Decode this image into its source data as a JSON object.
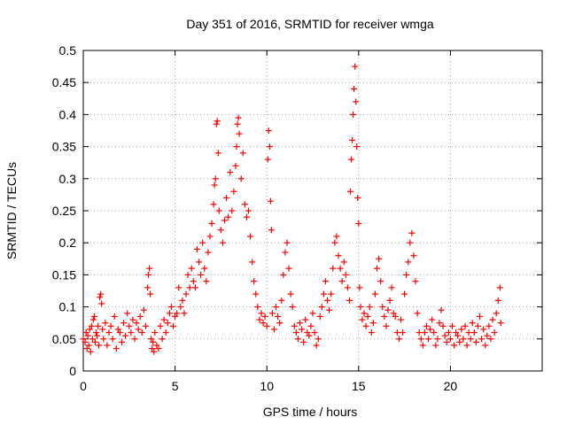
{
  "chart_data": {
    "type": "scatter",
    "title": "Day 351 of 2016, SRMTID for receiver wmga",
    "xlabel": "GPS time / hours",
    "ylabel": "SRMTID / TECUs",
    "xlim": [
      0,
      25
    ],
    "ylim": [
      0,
      0.5
    ],
    "x_ticks": [
      0,
      5,
      10,
      15,
      20
    ],
    "x_tick_labels": [
      "0",
      "5",
      "10",
      "15",
      "20"
    ],
    "y_ticks": [
      0,
      0.05,
      0.1,
      0.15,
      0.2,
      0.25,
      0.3,
      0.35,
      0.4,
      0.45,
      0.5
    ],
    "y_tick_labels": [
      "0",
      "0.05",
      "0.1",
      "0.15",
      "0.2",
      "0.25",
      "0.3",
      "0.35",
      "0.4",
      "0.45",
      "0.5"
    ],
    "grid": true,
    "marker": "+",
    "marker_color": "#ff0000",
    "series": [
      {
        "name": "SRMTID",
        "points": [
          [
            0.0,
            0.05
          ],
          [
            0.1,
            0.045
          ],
          [
            0.15,
            0.06
          ],
          [
            0.2,
            0.035
          ],
          [
            0.25,
            0.055
          ],
          [
            0.3,
            0.04
          ],
          [
            0.35,
            0.065
          ],
          [
            0.4,
            0.03
          ],
          [
            0.45,
            0.07
          ],
          [
            0.5,
            0.05
          ],
          [
            0.55,
            0.08
          ],
          [
            0.6,
            0.085
          ],
          [
            0.65,
            0.045
          ],
          [
            0.7,
            0.06
          ],
          [
            0.75,
            0.055
          ],
          [
            0.8,
            0.07
          ],
          [
            0.85,
            0.04
          ],
          [
            0.9,
            0.115
          ],
          [
            0.95,
            0.12
          ],
          [
            1.0,
            0.105
          ],
          [
            1.05,
            0.065
          ],
          [
            1.1,
            0.05
          ],
          [
            1.2,
            0.075
          ],
          [
            1.3,
            0.04
          ],
          [
            1.4,
            0.06
          ],
          [
            1.5,
            0.07
          ],
          [
            1.6,
            0.05
          ],
          [
            1.7,
            0.085
          ],
          [
            1.8,
            0.035
          ],
          [
            1.9,
            0.065
          ],
          [
            2.0,
            0.06
          ],
          [
            2.1,
            0.045
          ],
          [
            2.2,
            0.075
          ],
          [
            2.3,
            0.055
          ],
          [
            2.4,
            0.09
          ],
          [
            2.5,
            0.07
          ],
          [
            2.6,
            0.06
          ],
          [
            2.7,
            0.08
          ],
          [
            2.8,
            0.05
          ],
          [
            2.9,
            0.075
          ],
          [
            3.0,
            0.065
          ],
          [
            3.1,
            0.085
          ],
          [
            3.2,
            0.06
          ],
          [
            3.3,
            0.095
          ],
          [
            3.4,
            0.07
          ],
          [
            3.5,
            0.13
          ],
          [
            3.55,
            0.15
          ],
          [
            3.6,
            0.16
          ],
          [
            3.65,
            0.12
          ],
          [
            3.7,
            0.05
          ],
          [
            3.75,
            0.035
          ],
          [
            3.8,
            0.045
          ],
          [
            3.85,
            0.03
          ],
          [
            3.9,
            0.06
          ],
          [
            4.0,
            0.04
          ],
          [
            4.1,
            0.035
          ],
          [
            4.2,
            0.07
          ],
          [
            4.3,
            0.05
          ],
          [
            4.4,
            0.08
          ],
          [
            4.5,
            0.06
          ],
          [
            4.6,
            0.075
          ],
          [
            4.7,
            0.09
          ],
          [
            4.8,
            0.1
          ],
          [
            4.9,
            0.07
          ],
          [
            5.0,
            0.085
          ],
          [
            5.1,
            0.09
          ],
          [
            5.2,
            0.13
          ],
          [
            5.3,
            0.1
          ],
          [
            5.4,
            0.11
          ],
          [
            5.5,
            0.09
          ],
          [
            5.6,
            0.12
          ],
          [
            5.7,
            0.15
          ],
          [
            5.8,
            0.13
          ],
          [
            5.9,
            0.16
          ],
          [
            6.0,
            0.14
          ],
          [
            6.1,
            0.13
          ],
          [
            6.2,
            0.19
          ],
          [
            6.3,
            0.17
          ],
          [
            6.4,
            0.15
          ],
          [
            6.5,
            0.2
          ],
          [
            6.6,
            0.16
          ],
          [
            6.7,
            0.14
          ],
          [
            6.8,
            0.185
          ],
          [
            6.9,
            0.21
          ],
          [
            7.0,
            0.23
          ],
          [
            7.1,
            0.26
          ],
          [
            7.15,
            0.29
          ],
          [
            7.2,
            0.3
          ],
          [
            7.25,
            0.385
          ],
          [
            7.3,
            0.39
          ],
          [
            7.35,
            0.34
          ],
          [
            7.4,
            0.25
          ],
          [
            7.5,
            0.22
          ],
          [
            7.6,
            0.2
          ],
          [
            7.7,
            0.235
          ],
          [
            7.8,
            0.27
          ],
          [
            7.9,
            0.24
          ],
          [
            8.0,
            0.31
          ],
          [
            8.1,
            0.25
          ],
          [
            8.2,
            0.28
          ],
          [
            8.3,
            0.32
          ],
          [
            8.35,
            0.35
          ],
          [
            8.4,
            0.385
          ],
          [
            8.45,
            0.395
          ],
          [
            8.5,
            0.37
          ],
          [
            8.6,
            0.3
          ],
          [
            8.7,
            0.34
          ],
          [
            8.8,
            0.26
          ],
          [
            8.9,
            0.24
          ],
          [
            9.0,
            0.25
          ],
          [
            9.1,
            0.21
          ],
          [
            9.2,
            0.17
          ],
          [
            9.3,
            0.14
          ],
          [
            9.4,
            0.12
          ],
          [
            9.5,
            0.1
          ],
          [
            9.6,
            0.08
          ],
          [
            9.7,
            0.09
          ],
          [
            9.8,
            0.075
          ],
          [
            9.9,
            0.085
          ],
          [
            10.0,
            0.07
          ],
          [
            10.05,
            0.33
          ],
          [
            10.1,
            0.375
          ],
          [
            10.15,
            0.35
          ],
          [
            10.2,
            0.265
          ],
          [
            10.25,
            0.22
          ],
          [
            10.3,
            0.09
          ],
          [
            10.4,
            0.065
          ],
          [
            10.5,
            0.1
          ],
          [
            10.6,
            0.085
          ],
          [
            10.7,
            0.075
          ],
          [
            10.8,
            0.11
          ],
          [
            10.9,
            0.15
          ],
          [
            11.0,
            0.185
          ],
          [
            11.1,
            0.2
          ],
          [
            11.2,
            0.16
          ],
          [
            11.3,
            0.12
          ],
          [
            11.4,
            0.1
          ],
          [
            11.5,
            0.07
          ],
          [
            11.6,
            0.06
          ],
          [
            11.7,
            0.05
          ],
          [
            11.8,
            0.075
          ],
          [
            11.9,
            0.065
          ],
          [
            12.0,
            0.045
          ],
          [
            12.1,
            0.08
          ],
          [
            12.2,
            0.06
          ],
          [
            12.3,
            0.055
          ],
          [
            12.4,
            0.07
          ],
          [
            12.5,
            0.09
          ],
          [
            12.6,
            0.06
          ],
          [
            12.7,
            0.04
          ],
          [
            12.8,
            0.05
          ],
          [
            12.9,
            0.085
          ],
          [
            13.0,
            0.1
          ],
          [
            13.1,
            0.12
          ],
          [
            13.2,
            0.14
          ],
          [
            13.3,
            0.11
          ],
          [
            13.4,
            0.095
          ],
          [
            13.5,
            0.12
          ],
          [
            13.6,
            0.16
          ],
          [
            13.7,
            0.2
          ],
          [
            13.8,
            0.21
          ],
          [
            13.9,
            0.18
          ],
          [
            14.0,
            0.16
          ],
          [
            14.1,
            0.14
          ],
          [
            14.2,
            0.17
          ],
          [
            14.3,
            0.15
          ],
          [
            14.4,
            0.13
          ],
          [
            14.5,
            0.11
          ],
          [
            14.55,
            0.28
          ],
          [
            14.6,
            0.33
          ],
          [
            14.65,
            0.36
          ],
          [
            14.7,
            0.4
          ],
          [
            14.75,
            0.44
          ],
          [
            14.8,
            0.475
          ],
          [
            14.85,
            0.42
          ],
          [
            14.9,
            0.35
          ],
          [
            14.95,
            0.27
          ],
          [
            15.0,
            0.23
          ],
          [
            15.05,
            0.13
          ],
          [
            15.1,
            0.1
          ],
          [
            15.2,
            0.08
          ],
          [
            15.3,
            0.09
          ],
          [
            15.4,
            0.07
          ],
          [
            15.5,
            0.085
          ],
          [
            15.6,
            0.1
          ],
          [
            15.7,
            0.06
          ],
          [
            15.8,
            0.075
          ],
          [
            15.9,
            0.12
          ],
          [
            16.0,
            0.16
          ],
          [
            16.1,
            0.175
          ],
          [
            16.2,
            0.14
          ],
          [
            16.3,
            0.1
          ],
          [
            16.4,
            0.085
          ],
          [
            16.5,
            0.07
          ],
          [
            16.6,
            0.095
          ],
          [
            16.7,
            0.11
          ],
          [
            16.8,
            0.13
          ],
          [
            16.9,
            0.09
          ],
          [
            17.0,
            0.085
          ],
          [
            17.1,
            0.06
          ],
          [
            17.2,
            0.05
          ],
          [
            17.3,
            0.08
          ],
          [
            17.4,
            0.06
          ],
          [
            17.5,
            0.12
          ],
          [
            17.6,
            0.15
          ],
          [
            17.7,
            0.17
          ],
          [
            17.8,
            0.2
          ],
          [
            17.9,
            0.215
          ],
          [
            18.0,
            0.18
          ],
          [
            18.1,
            0.14
          ],
          [
            18.2,
            0.09
          ],
          [
            18.3,
            0.06
          ],
          [
            18.4,
            0.05
          ],
          [
            18.5,
            0.04
          ],
          [
            18.6,
            0.06
          ],
          [
            18.7,
            0.07
          ],
          [
            18.8,
            0.05
          ],
          [
            18.9,
            0.065
          ],
          [
            19.0,
            0.08
          ],
          [
            19.1,
            0.06
          ],
          [
            19.2,
            0.04
          ],
          [
            19.3,
            0.05
          ],
          [
            19.4,
            0.075
          ],
          [
            19.5,
            0.095
          ],
          [
            19.6,
            0.07
          ],
          [
            19.7,
            0.055
          ],
          [
            19.8,
            0.045
          ],
          [
            19.9,
            0.06
          ],
          [
            20.0,
            0.05
          ],
          [
            20.1,
            0.07
          ],
          [
            20.2,
            0.04
          ],
          [
            20.3,
            0.06
          ],
          [
            20.4,
            0.055
          ],
          [
            20.5,
            0.045
          ],
          [
            20.6,
            0.065
          ],
          [
            20.7,
            0.05
          ],
          [
            20.8,
            0.07
          ],
          [
            20.9,
            0.04
          ],
          [
            21.0,
            0.06
          ],
          [
            21.1,
            0.05
          ],
          [
            21.2,
            0.075
          ],
          [
            21.3,
            0.06
          ],
          [
            21.4,
            0.045
          ],
          [
            21.5,
            0.07
          ],
          [
            21.6,
            0.085
          ],
          [
            21.7,
            0.05
          ],
          [
            21.8,
            0.065
          ],
          [
            21.9,
            0.04
          ],
          [
            22.0,
            0.055
          ],
          [
            22.1,
            0.07
          ],
          [
            22.2,
            0.05
          ],
          [
            22.3,
            0.08
          ],
          [
            22.4,
            0.06
          ],
          [
            22.5,
            0.09
          ],
          [
            22.6,
            0.11
          ],
          [
            22.7,
            0.13
          ],
          [
            22.75,
            0.075
          ]
        ]
      }
    ]
  }
}
